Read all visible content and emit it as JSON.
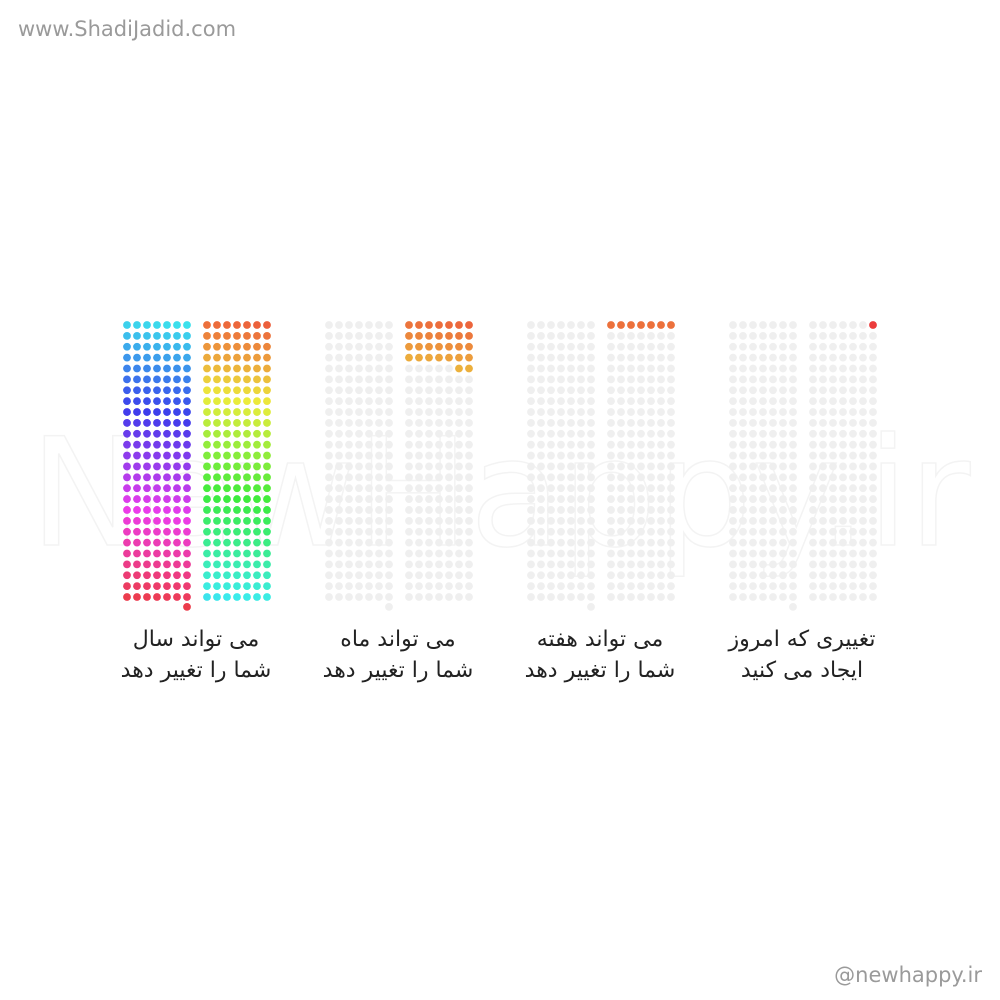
{
  "site": "www.ShadiJadid.com",
  "handle": "@newhappy.ir",
  "watermark": "NewHappy.ir",
  "chart_data": {
    "type": "waffle",
    "total": 365,
    "panels": [
      {
        "label": [
          "تغییری که امروز",
          "ایجاد می کنید"
        ],
        "count": 1,
        "hue_range": [
          0,
          0
        ]
      },
      {
        "label": [
          "می تواند هفته",
          "شما را تغییر دهد"
        ],
        "count": 7,
        "hue_range": [
          18,
          18
        ]
      },
      {
        "label": [
          "می تواند ماه",
          "شما را تغییر دهد"
        ],
        "count": 30,
        "hue_range": [
          14,
          40
        ]
      },
      {
        "label": [
          "می تواند سال",
          "شما را تغییر دهد"
        ],
        "count": 365,
        "hue_range": [
          12,
          355
        ]
      }
    ]
  }
}
